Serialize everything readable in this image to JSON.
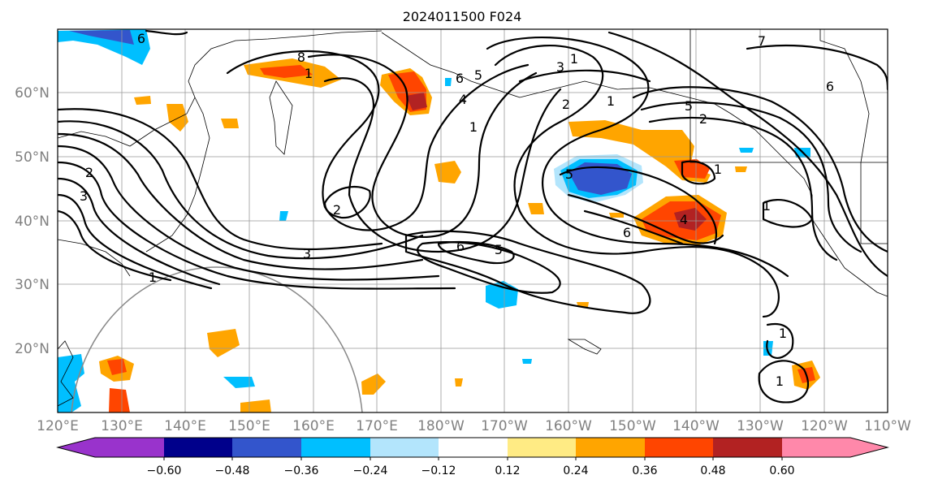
{
  "title": "2024011500 F024",
  "map": {
    "lat_labels": [
      "60°N",
      "50°N",
      "40°N",
      "30°N",
      "20°N"
    ],
    "lon_labels": [
      "120°E",
      "130°E",
      "140°E",
      "150°E",
      "160°E",
      "170°E",
      "180°W",
      "170°W",
      "160°W",
      "150°W",
      "140°W",
      "130°W",
      "120°W",
      "110°W"
    ]
  },
  "contour_labels": [
    "6",
    "8",
    "1",
    "6",
    "5",
    "4",
    "1",
    "1",
    "3",
    "2",
    "1",
    "7",
    "6",
    "5",
    "2",
    "2",
    "3",
    "5",
    "2",
    "1",
    "1",
    "3",
    "6",
    "5",
    "6",
    "4",
    "1",
    "1",
    "1"
  ],
  "colorbar": {
    "tick_labels": [
      "−0.60",
      "−0.48",
      "−0.36",
      "−0.24",
      "−0.12",
      "0.12",
      "0.24",
      "0.36",
      "0.48",
      "0.60"
    ],
    "colors": [
      "#9933cc",
      "#00008b",
      "#3355cc",
      "#00bfff",
      "#b3e5fc",
      "#ffffff",
      "#ffeb84",
      "#ffa500",
      "#ff4500",
      "#b22222",
      "#ff88aa"
    ]
  },
  "fill_colors": {
    "neg_light": "#b3e5fc",
    "neg_mid": "#00bfff",
    "neg_dark": "#3355cc",
    "pos_light": "#ffeb84",
    "pos_mid": "#ffa500",
    "pos_dark": "#ff4500",
    "pos_darker": "#b22222"
  }
}
